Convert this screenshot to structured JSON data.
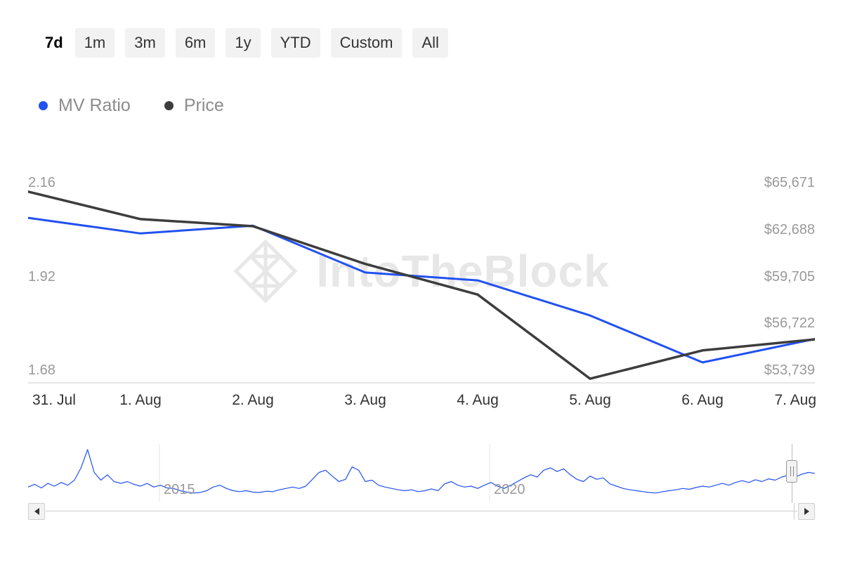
{
  "range_selector": {
    "buttons": [
      {
        "label": "7d",
        "selected": true
      },
      {
        "label": "1m",
        "selected": false
      },
      {
        "label": "3m",
        "selected": false
      },
      {
        "label": "6m",
        "selected": false
      },
      {
        "label": "1y",
        "selected": false
      },
      {
        "label": "YTD",
        "selected": false
      },
      {
        "label": "Custom",
        "selected": false
      },
      {
        "label": "All",
        "selected": false
      }
    ]
  },
  "legend": {
    "items": [
      {
        "label": "MV Ratio",
        "color": "#2151f0"
      },
      {
        "label": "Price",
        "color": "#3d3d3d"
      }
    ]
  },
  "watermark": "IntoTheBlock",
  "chart_data": {
    "type": "line",
    "x": [
      "31. Jul",
      "1. Aug",
      "2. Aug",
      "3. Aug",
      "4. Aug",
      "5. Aug",
      "6. Aug",
      "7. Aug"
    ],
    "series": [
      {
        "name": "MV Ratio",
        "color": "#2151f0",
        "axis": "left",
        "values": [
          2.07,
          2.03,
          2.05,
          1.93,
          1.91,
          1.82,
          1.7,
          1.76
        ]
      },
      {
        "name": "Price",
        "color": "#3d3d3d",
        "axis": "right",
        "values": [
          65100,
          63350,
          62900,
          60500,
          58550,
          53200,
          55000,
          55700
        ]
      }
    ],
    "left_axis": {
      "labels": [
        "2.16",
        "1.92",
        "1.68"
      ],
      "ticks": [
        2.16,
        1.92,
        1.68
      ],
      "top_value": 2.16,
      "bottom_value": 1.68
    },
    "right_axis": {
      "labels": [
        "$65,671",
        "$62,688",
        "$59,705",
        "$56,722",
        "$53,739"
      ],
      "ticks": [
        65671,
        62688,
        59705,
        56722,
        53739
      ],
      "top_value": 65671,
      "bottom_value": 53739
    },
    "navigator": {
      "year_labels": [
        "2015",
        "2020"
      ],
      "values": [
        0.18,
        0.24,
        0.16,
        0.26,
        0.2,
        0.28,
        0.22,
        0.33,
        0.6,
        1.0,
        0.5,
        0.33,
        0.45,
        0.3,
        0.26,
        0.3,
        0.24,
        0.2,
        0.26,
        0.18,
        0.22,
        0.16,
        0.15,
        0.1,
        0.07,
        0.05,
        0.06,
        0.1,
        0.18,
        0.22,
        0.15,
        0.1,
        0.08,
        0.1,
        0.07,
        0.06,
        0.09,
        0.08,
        0.12,
        0.15,
        0.18,
        0.15,
        0.2,
        0.35,
        0.5,
        0.55,
        0.42,
        0.3,
        0.35,
        0.62,
        0.55,
        0.3,
        0.33,
        0.22,
        0.18,
        0.15,
        0.12,
        0.1,
        0.12,
        0.08,
        0.1,
        0.14,
        0.1,
        0.25,
        0.3,
        0.22,
        0.18,
        0.2,
        0.15,
        0.22,
        0.28,
        0.2,
        0.15,
        0.22,
        0.3,
        0.38,
        0.45,
        0.4,
        0.55,
        0.6,
        0.52,
        0.58,
        0.45,
        0.35,
        0.3,
        0.42,
        0.35,
        0.38,
        0.25,
        0.2,
        0.15,
        0.12,
        0.1,
        0.08,
        0.06,
        0.05,
        0.08,
        0.1,
        0.12,
        0.15,
        0.13,
        0.17,
        0.2,
        0.18,
        0.22,
        0.26,
        0.22,
        0.28,
        0.32,
        0.28,
        0.34,
        0.3,
        0.36,
        0.33,
        0.4,
        0.44,
        0.4,
        0.46,
        0.5,
        0.48
      ]
    }
  }
}
